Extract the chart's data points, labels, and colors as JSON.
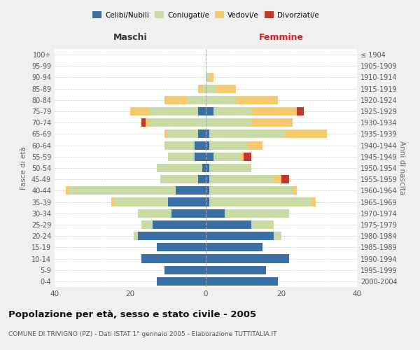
{
  "age_groups": [
    "0-4",
    "5-9",
    "10-14",
    "15-19",
    "20-24",
    "25-29",
    "30-34",
    "35-39",
    "40-44",
    "45-49",
    "50-54",
    "55-59",
    "60-64",
    "65-69",
    "70-74",
    "75-79",
    "80-84",
    "85-89",
    "90-94",
    "95-99",
    "100+"
  ],
  "birth_years": [
    "2000-2004",
    "1995-1999",
    "1990-1994",
    "1985-1989",
    "1980-1984",
    "1975-1979",
    "1970-1974",
    "1965-1969",
    "1960-1964",
    "1955-1959",
    "1950-1954",
    "1945-1949",
    "1940-1944",
    "1935-1939",
    "1930-1934",
    "1925-1929",
    "1920-1924",
    "1915-1919",
    "1910-1914",
    "1905-1909",
    "≤ 1904"
  ],
  "maschi": {
    "celibi": [
      13,
      11,
      17,
      13,
      18,
      14,
      9,
      10,
      8,
      2,
      1,
      3,
      3,
      2,
      0,
      2,
      0,
      0,
      0,
      0,
      0
    ],
    "coniugati": [
      0,
      0,
      0,
      0,
      1,
      3,
      9,
      14,
      28,
      10,
      12,
      7,
      8,
      8,
      15,
      13,
      5,
      1,
      0,
      0,
      0
    ],
    "vedovi": [
      0,
      0,
      0,
      0,
      0,
      0,
      0,
      1,
      1,
      0,
      0,
      0,
      0,
      1,
      1,
      5,
      6,
      1,
      0,
      0,
      0
    ],
    "divorziati": [
      0,
      0,
      0,
      0,
      0,
      0,
      0,
      0,
      0,
      0,
      0,
      0,
      0,
      0,
      1,
      0,
      0,
      0,
      0,
      0,
      0
    ]
  },
  "femmine": {
    "nubili": [
      19,
      16,
      22,
      15,
      18,
      12,
      5,
      1,
      1,
      1,
      1,
      2,
      1,
      1,
      0,
      2,
      0,
      0,
      0,
      0,
      0
    ],
    "coniugate": [
      0,
      0,
      0,
      0,
      2,
      6,
      17,
      27,
      22,
      17,
      11,
      7,
      10,
      20,
      12,
      10,
      8,
      3,
      1,
      0,
      0
    ],
    "vedove": [
      0,
      0,
      0,
      0,
      0,
      0,
      0,
      1,
      1,
      2,
      0,
      1,
      4,
      11,
      11,
      12,
      11,
      5,
      1,
      0,
      0
    ],
    "divorziate": [
      0,
      0,
      0,
      0,
      0,
      0,
      0,
      0,
      0,
      2,
      0,
      2,
      0,
      0,
      0,
      2,
      0,
      0,
      0,
      0,
      0
    ]
  },
  "colors": {
    "celibi": "#3a6ea5",
    "coniugati": "#c8dba4",
    "vedovi": "#f6c96e",
    "divorziati": "#c0392b"
  },
  "title": "Popolazione per età, sesso e stato civile - 2005",
  "subtitle": "COMUNE DI TRIVIGNO (PZ) - Dati ISTAT 1° gennaio 2005 - Elaborazione TUTTITALIA.IT",
  "xlabel_maschi": "Maschi",
  "xlabel_femmine": "Femmine",
  "ylabel_left": "Fasce di età",
  "ylabel_right": "Anni di nascita",
  "xlim": 40,
  "bg_color": "#f0f0f0",
  "plot_bg": "#ffffff"
}
